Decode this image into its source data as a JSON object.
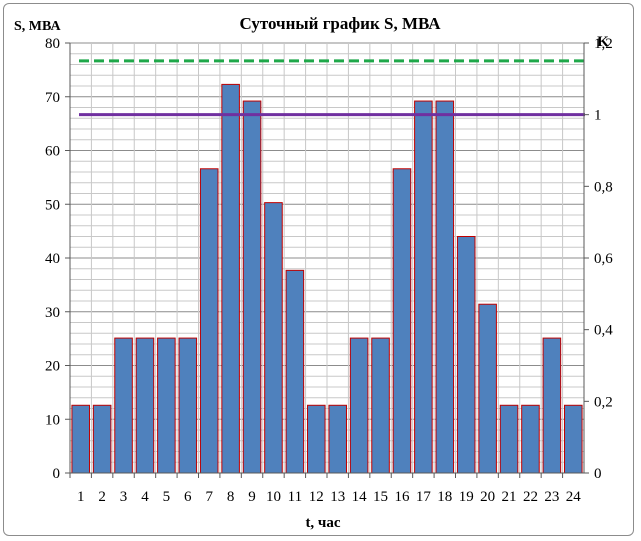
{
  "chart_data": {
    "type": "bar",
    "title": "Суточный график S, МВА",
    "ylabel": "S, МВА",
    "y2label": "K",
    "xlabel": "t, час",
    "ylim": [
      0,
      80
    ],
    "y2lim": [
      0,
      1.2
    ],
    "y_ticks": [
      "0",
      "10",
      "20",
      "30",
      "40",
      "50",
      "60",
      "70",
      "80"
    ],
    "y2_ticks": [
      "0",
      "0,2",
      "0,4",
      "0,6",
      "0,8",
      "1",
      "1,2"
    ],
    "categories": [
      "1",
      "2",
      "3",
      "4",
      "5",
      "6",
      "7",
      "8",
      "9",
      "10",
      "11",
      "12",
      "13",
      "14",
      "15",
      "16",
      "17",
      "18",
      "19",
      "20",
      "21",
      "22",
      "23",
      "24"
    ],
    "values": [
      12.6,
      12.6,
      25.1,
      25.1,
      25.1,
      25.1,
      56.6,
      72.3,
      69.2,
      50.3,
      37.7,
      12.6,
      12.6,
      25.1,
      25.1,
      56.6,
      69.2,
      69.2,
      44.0,
      31.4,
      12.6,
      12.6,
      25.1,
      12.6
    ],
    "reference_lines": [
      {
        "axis": "y2",
        "value": 1.15,
        "style": "dashed",
        "color": "#1fa84a"
      },
      {
        "axis": "y2",
        "value": 1.0,
        "style": "solid",
        "color": "#7030a0"
      }
    ],
    "grid": true,
    "colors": {
      "bar_fill": "#4f81bd",
      "bar_edge": "#c00000",
      "grid": "#a6a6a6"
    }
  }
}
